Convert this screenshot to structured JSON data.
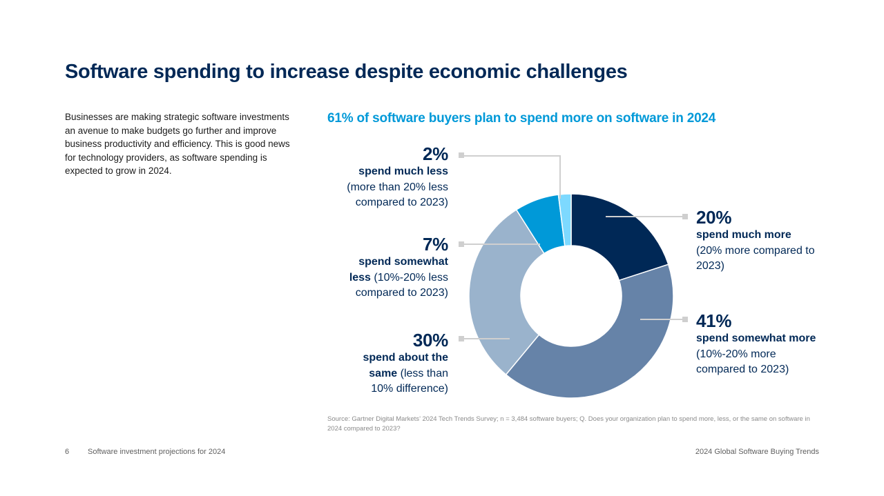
{
  "page": {
    "title": "Software spending to increase despite economic challenges",
    "intro": "Businesses are making strategic software investments an avenue to make budgets go further and improve business productivity and efficiency. This is good news for technology providers, as software spending is expected to grow in 2024.",
    "source": "Source: Gartner Digital Markets’ 2024 Tech Trends Survey; n = 3,484 software buyers; Q. Does your organization plan to spend more, less, or the same on software in 2024 compared to 2023?",
    "footer": {
      "page_number": "6",
      "section": "Software investment projections for 2024",
      "report": "2024 Global Software Buying Trends"
    }
  },
  "chart_data": {
    "type": "pie",
    "title": "61% of software buyers plan to spend more on software in 2024",
    "categories": [
      "spend much more",
      "spend somewhat more",
      "spend about the same",
      "spend somewhat less",
      "spend much less"
    ],
    "values": [
      20,
      41,
      30,
      7,
      2
    ],
    "colors": [
      "#002856",
      "#6683a8",
      "#9ab3cc",
      "#0099d8",
      "#7dd9ff"
    ],
    "labels": [
      {
        "pct": "20%",
        "bold": "spend much more",
        "rest": " (20% more compared to 2023)"
      },
      {
        "pct": "41%",
        "bold": "spend somewhat more",
        "rest": " (10%-20% more compared to 2023)"
      },
      {
        "pct": "30%",
        "bold": "spend about the same",
        "rest": " (less than 10% difference)"
      },
      {
        "pct": "7%",
        "bold": "spend somewhat less",
        "rest": " (10%-20% less compared to 2023)"
      },
      {
        "pct": "2%",
        "bold": "spend much less",
        "rest": " (more than 20% less compared to 2023)"
      }
    ],
    "leader_color": "#cfcfcf"
  }
}
